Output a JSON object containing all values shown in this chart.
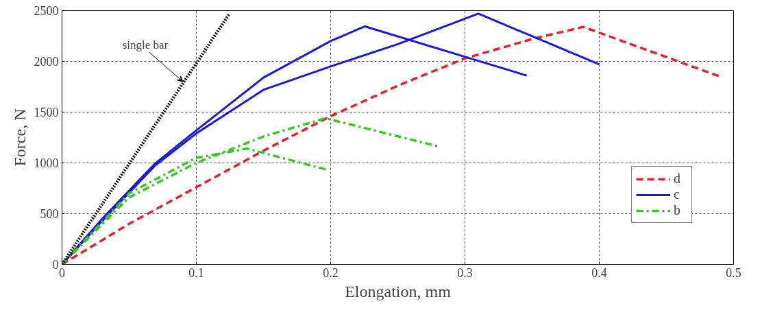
{
  "chart_data": {
    "type": "line",
    "xlabel": "Elongation, mm",
    "ylabel": "Force, N",
    "xlim": [
      0,
      0.5
    ],
    "ylim": [
      0,
      2500
    ],
    "xticks": [
      0,
      0.1,
      0.2,
      0.3,
      0.4,
      0.5
    ],
    "yticks": [
      0,
      500,
      1000,
      1500,
      2000,
      2500
    ],
    "grid": true,
    "legend": "bottom right",
    "series": [
      {
        "name": "d",
        "color": "#e8202a",
        "line_style": "dashed",
        "x": [
          0,
          0.05,
          0.1,
          0.15,
          0.2,
          0.25,
          0.3,
          0.35,
          0.388,
          0.49
        ],
        "values": [
          0,
          400,
          760,
          1120,
          1460,
          1760,
          2030,
          2220,
          2340,
          1850
        ]
      },
      {
        "name": "c",
        "color": "#1a1ad6",
        "line_style": "solid",
        "x": [
          0,
          0.03,
          0.069,
          0.1,
          0.15,
          0.2,
          0.2255,
          0.346
        ],
        "values": [
          0,
          450,
          990,
          1320,
          1840,
          2200,
          2345,
          1860
        ]
      },
      {
        "color": "#1a1ad6",
        "line_style": "solid",
        "x": [
          0,
          0.03,
          0.069,
          0.1,
          0.15,
          0.2,
          0.25,
          0.31,
          0.4
        ],
        "values": [
          0,
          430,
          970,
          1290,
          1720,
          1950,
          2170,
          2470,
          1970
        ]
      },
      {
        "name": "b",
        "color": "#3cc428",
        "line_style": "dashdot",
        "x": [
          0,
          0.05,
          0.1,
          0.15,
          0.196,
          0.281
        ],
        "values": [
          0,
          660,
          1000,
          1260,
          1440,
          1160
        ]
      },
      {
        "color": "#3cc428",
        "line_style": "dashdot",
        "x": [
          0,
          0.05,
          0.1,
          0.138,
          0.198
        ],
        "values": [
          0,
          700,
          1050,
          1140,
          930
        ]
      },
      {
        "color": "#111111",
        "line_style": "dotted",
        "x": [
          0,
          0.06,
          0.1245
        ],
        "values": [
          0,
          1190,
          2465
        ]
      }
    ],
    "annotations": [
      {
        "text": "single bar",
        "x": 0.09,
        "y": 1800
      }
    ]
  }
}
